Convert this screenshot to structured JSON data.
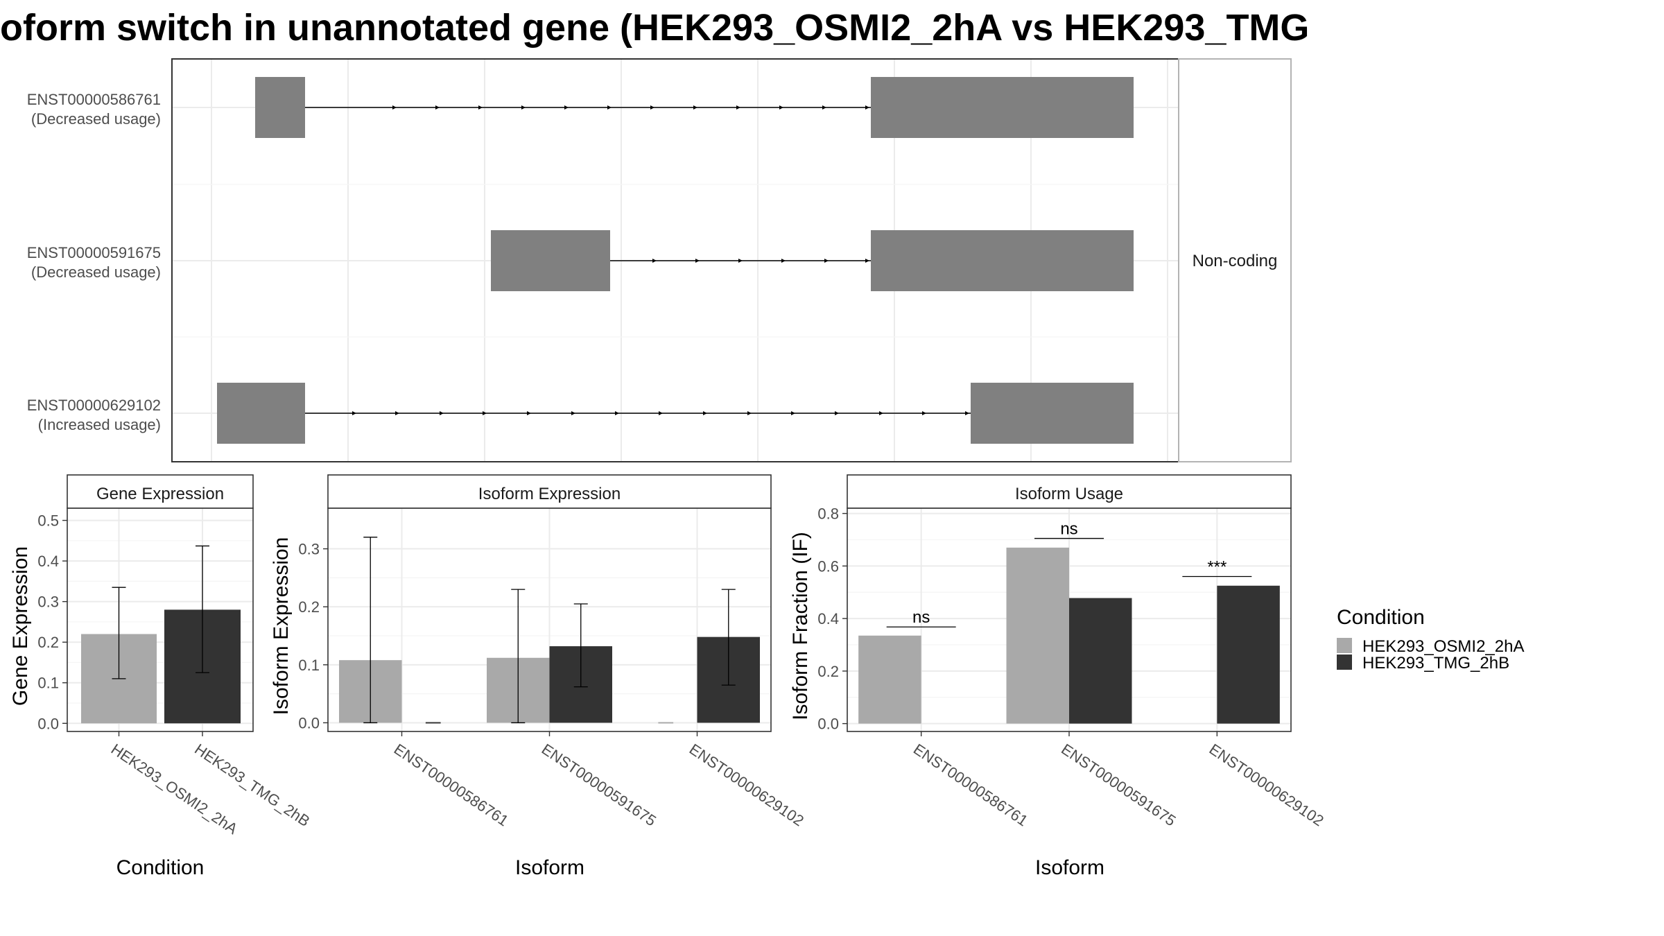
{
  "title": "oform switch in unannotated gene (HEK293_OSMI2_2hA vs HEK293_TMG",
  "colors": {
    "HEK293_OSMI2_2hA": "#a9a9a9",
    "HEK293_TMG_2hB": "#333333",
    "exon": "#808080"
  },
  "structure_panel": {
    "facet_label": "Non-coding",
    "transcripts": [
      {
        "id": "ENST00000586761",
        "status": "(Decreased usage)"
      },
      {
        "id": "ENST00000591675",
        "status": "(Decreased usage)"
      },
      {
        "id": "ENST00000629102",
        "status": "(Increased usage)"
      }
    ]
  },
  "legend": {
    "title": "Condition",
    "items": [
      "HEK293_OSMI2_2hA",
      "HEK293_TMG_2hB"
    ]
  },
  "chart_data": [
    {
      "type": "bar",
      "strip": "Gene Expression",
      "xlabel": "Condition",
      "ylabel": "Gene Expression",
      "ylim": [
        -0.02,
        0.53
      ],
      "yticks": [
        0.0,
        0.1,
        0.2,
        0.3,
        0.4,
        0.5
      ],
      "tick_decimals": 1,
      "categories": [
        "HEK293_OSMI2_2hA",
        "HEK293_TMG_2hB"
      ],
      "series": [
        {
          "name": "HEK293_OSMI2_2hA",
          "values": [
            0.22,
            null
          ],
          "err_low": [
            0.11,
            null
          ],
          "err_high": [
            0.335,
            null
          ]
        },
        {
          "name": "HEK293_TMG_2hB",
          "values": [
            null,
            0.28
          ],
          "err_low": [
            null,
            0.125
          ],
          "err_high": [
            null,
            0.437
          ]
        }
      ],
      "grid": true
    },
    {
      "type": "bar",
      "strip": "Isoform Expression",
      "xlabel": "Isoform",
      "ylabel": "Isoform Expression",
      "ylim": [
        -0.015,
        0.37
      ],
      "yticks": [
        0.0,
        0.1,
        0.2,
        0.3
      ],
      "tick_decimals": 1,
      "categories": [
        "ENST00000586761",
        "ENST00000591675",
        "ENST00000629102"
      ],
      "series": [
        {
          "name": "HEK293_OSMI2_2hA",
          "values": [
            0.108,
            0.112,
            0.0
          ],
          "err_low": [
            0.0,
            0.0,
            0.0
          ],
          "err_high": [
            0.32,
            0.23,
            0.0
          ]
        },
        {
          "name": "HEK293_TMG_2hB",
          "values": [
            0.0,
            0.132,
            0.148
          ],
          "err_low": [
            0.0,
            0.062,
            0.065
          ],
          "err_high": [
            0.0,
            0.205,
            0.23
          ]
        }
      ],
      "grid": true
    },
    {
      "type": "bar",
      "strip": "Isoform Usage",
      "xlabel": "Isoform",
      "ylabel": "Isoform Fraction (IF)",
      "ylim": [
        -0.03,
        0.82
      ],
      "yticks": [
        0.0,
        0.2,
        0.4,
        0.6,
        0.8
      ],
      "tick_decimals": 1,
      "categories": [
        "ENST00000586761",
        "ENST00000591675",
        "ENST00000629102"
      ],
      "series": [
        {
          "name": "HEK293_OSMI2_2hA",
          "values": [
            0.335,
            0.67,
            null
          ]
        },
        {
          "name": "HEK293_TMG_2hB",
          "values": [
            null,
            0.478,
            0.525
          ]
        }
      ],
      "significance": [
        {
          "category": "ENST00000586761",
          "label": "ns",
          "y": 0.368
        },
        {
          "category": "ENST00000591675",
          "label": "ns",
          "y": 0.705
        },
        {
          "category": "ENST00000629102",
          "label": "***",
          "y": 0.56
        }
      ],
      "grid": true
    }
  ]
}
